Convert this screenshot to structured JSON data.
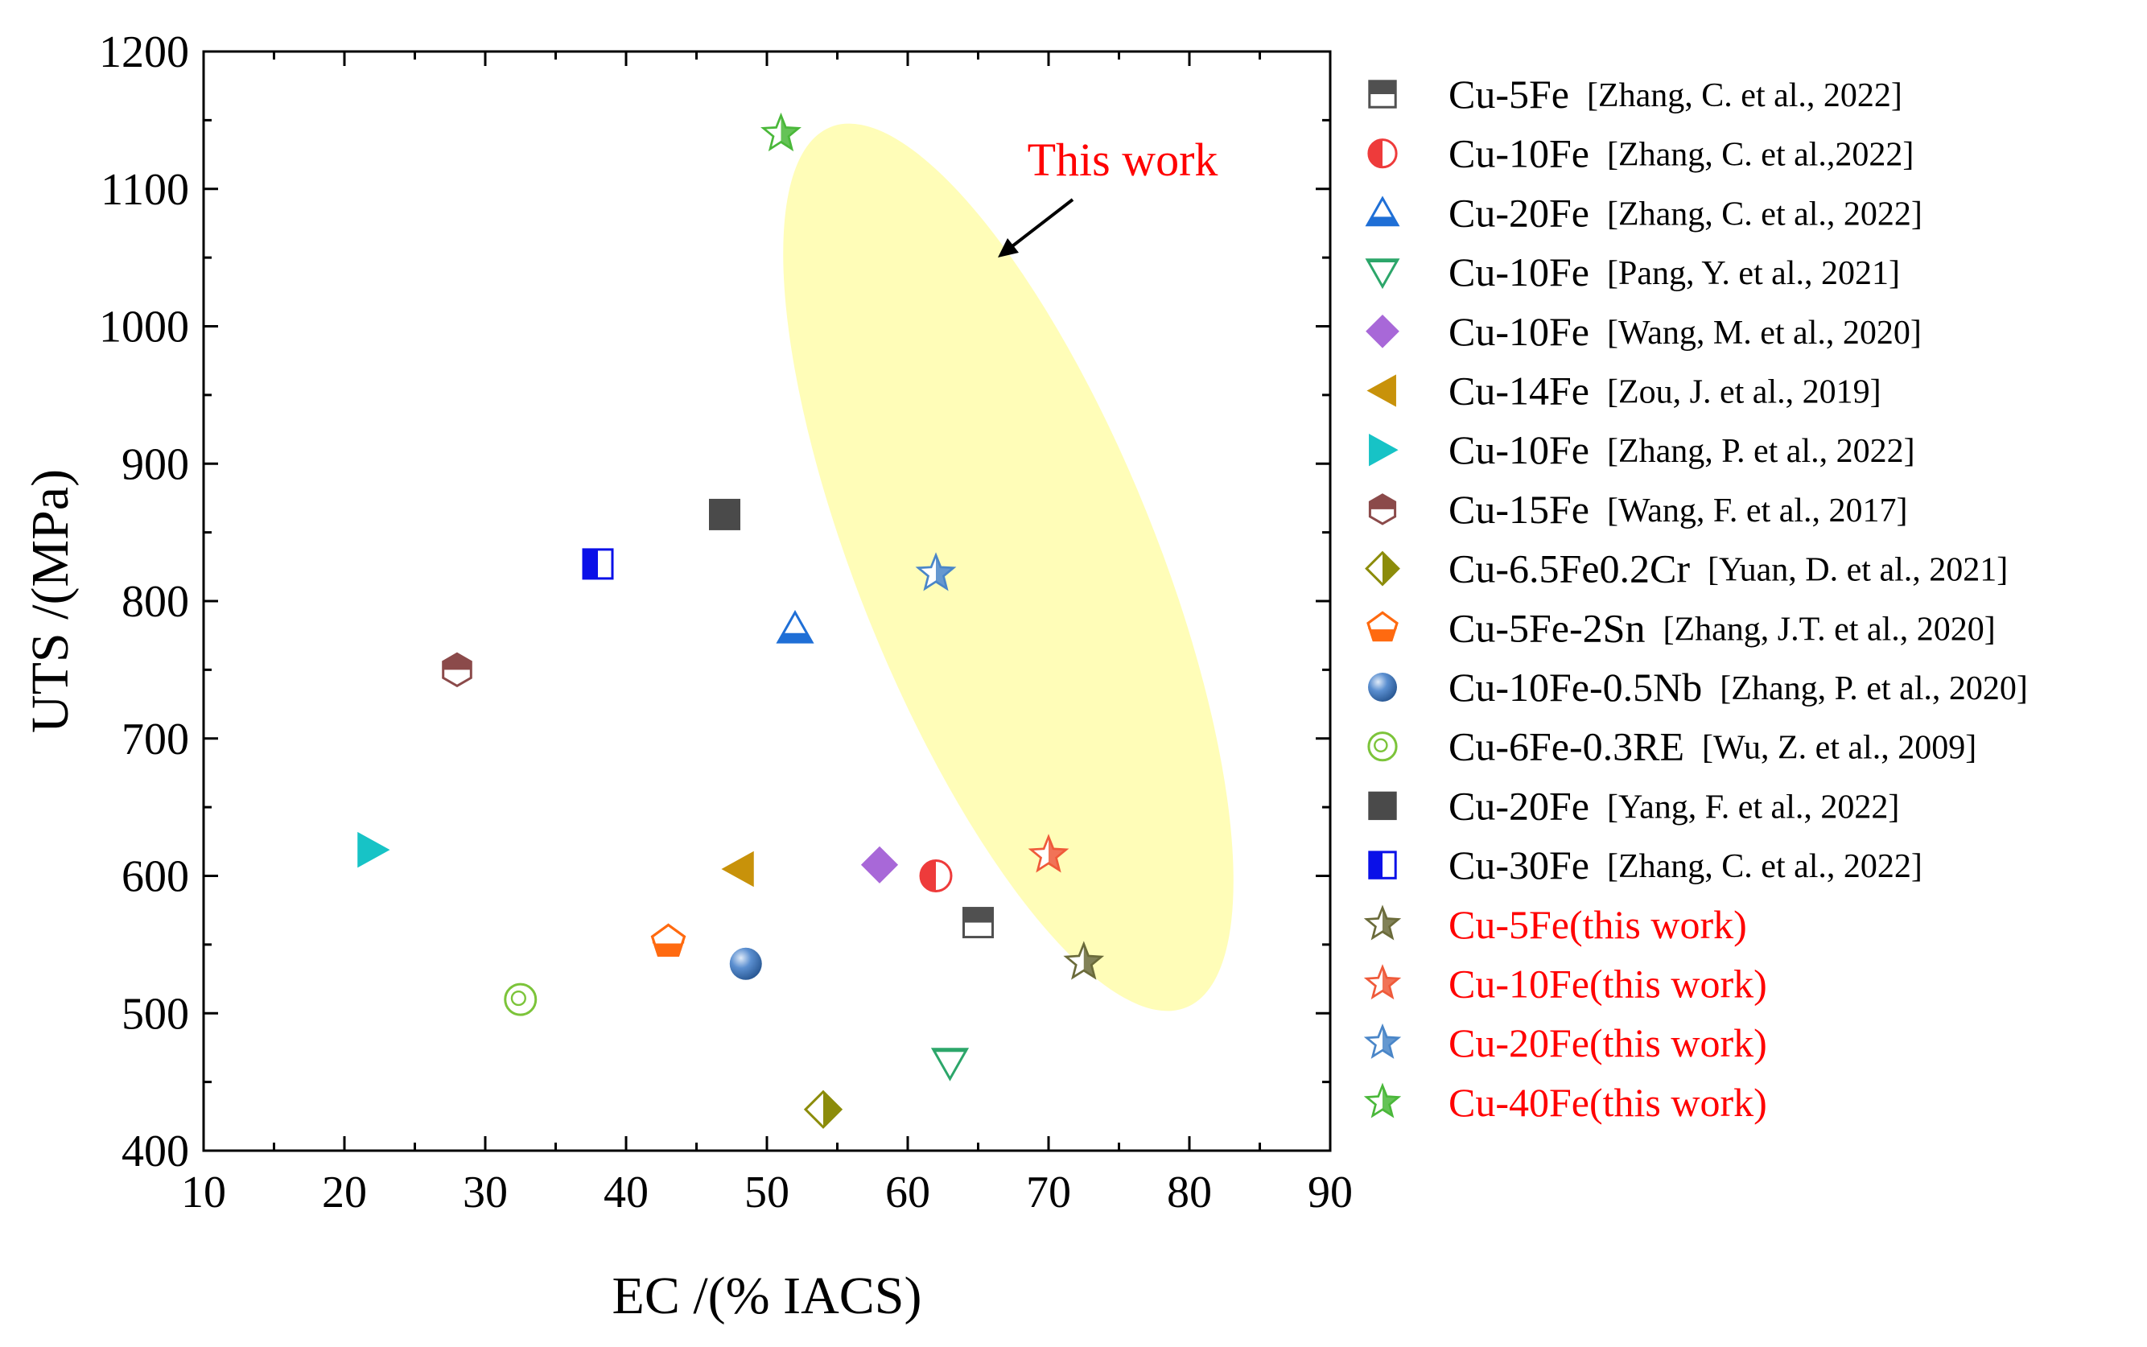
{
  "chart_data": {
    "type": "scatter",
    "xlabel": "EC /(% IACS)",
    "ylabel": "UTS /(MPa)",
    "xlim": [
      10,
      90
    ],
    "ylim": [
      400,
      1200
    ],
    "xticks": [
      10,
      20,
      30,
      40,
      50,
      60,
      70,
      80,
      90
    ],
    "yticks": [
      400,
      500,
      600,
      700,
      800,
      900,
      1000,
      1100,
      1200
    ],
    "grid": false,
    "legend_position": "right",
    "annotation": {
      "text": "This work",
      "color": "#ff0000",
      "highlight_color": "#fffdb8"
    },
    "series": [
      {
        "name": "Cu-5Fe",
        "ref": "[Zhang, C. et al., 2022]",
        "marker": "square-half-bottom",
        "color": "#505050",
        "name_color": "#000000",
        "points": [
          {
            "x": 65,
            "y": 566
          }
        ]
      },
      {
        "name": "Cu-10Fe",
        "ref": "[Zhang, C. et al.,2022]",
        "marker": "circle-half-right",
        "color": "#ee3b3b",
        "name_color": "#000000",
        "points": [
          {
            "x": 62,
            "y": 600
          }
        ]
      },
      {
        "name": "Cu-20Fe",
        "ref": "[Zhang, C. et al., 2022]",
        "marker": "triangle-up-half-bottom",
        "color": "#1f6fd6",
        "name_color": "#000000",
        "points": [
          {
            "x": 52,
            "y": 780
          }
        ]
      },
      {
        "name": "Cu-10Fe",
        "ref": "[Pang, Y. et al., 2021]",
        "marker": "triangle-down-half-top",
        "color": "#2ca66a",
        "name_color": "#000000",
        "points": [
          {
            "x": 63,
            "y": 464
          }
        ]
      },
      {
        "name": "Cu-10Fe",
        "ref": "[Wang, M. et al., 2020]",
        "marker": "diamond",
        "color": "#a868d8",
        "name_color": "#000000",
        "points": [
          {
            "x": 58,
            "y": 608
          }
        ]
      },
      {
        "name": "Cu-14Fe",
        "ref": "[Zou, J. et al., 2019]",
        "marker": "triangle-left",
        "color": "#c8920a",
        "name_color": "#000000",
        "points": [
          {
            "x": 48,
            "y": 605
          }
        ]
      },
      {
        "name": "Cu-10Fe",
        "ref": "[Zhang, P. et al., 2022]",
        "marker": "triangle-right",
        "color": "#17c3c6",
        "name_color": "#000000",
        "points": [
          {
            "x": 22,
            "y": 619
          }
        ]
      },
      {
        "name": "Cu-15Fe",
        "ref": "[Wang, F. et al., 2017]",
        "marker": "hexagon-half-top",
        "color": "#8b4a4a",
        "name_color": "#000000",
        "points": [
          {
            "x": 28,
            "y": 750
          }
        ]
      },
      {
        "name": "Cu-6.5Fe0.2Cr",
        "ref": "[Yuan, D. et al., 2021]",
        "marker": "diamond-half-right",
        "color": "#8c8c0a",
        "name_color": "#000000",
        "points": [
          {
            "x": 54,
            "y": 430
          }
        ]
      },
      {
        "name": "Cu-5Fe-2Sn",
        "ref": "[Zhang, J.T. et al., 2020]",
        "marker": "pentagon-half-bottom",
        "color": "#ff6a10",
        "name_color": "#000000",
        "points": [
          {
            "x": 43,
            "y": 552
          }
        ]
      },
      {
        "name": "Cu-10Fe-0.5Nb",
        "ref": "[Zhang, P. et al., 2020]",
        "marker": "sphere",
        "color": "#5b8fd0",
        "name_color": "#000000",
        "points": [
          {
            "x": 48.5,
            "y": 536
          }
        ]
      },
      {
        "name": "Cu-6Fe-0.3RE",
        "ref": "[Wu, Z. et al., 2009]",
        "marker": "circle-dot-open",
        "color": "#7cc43a",
        "name_color": "#000000",
        "points": [
          {
            "x": 32.5,
            "y": 510
          }
        ]
      },
      {
        "name": "Cu-20Fe",
        "ref": "[Yang, F. et al., 2022]",
        "marker": "square",
        "color": "#4a4a4a",
        "name_color": "#000000",
        "points": [
          {
            "x": 47,
            "y": 863
          }
        ]
      },
      {
        "name": "Cu-30Fe",
        "ref": "[Zhang, C. et al., 2022]",
        "marker": "square-half-left",
        "color": "#0a10e8",
        "name_color": "#000000",
        "points": [
          {
            "x": 38,
            "y": 827
          }
        ]
      },
      {
        "name": "Cu-5Fe(this work)",
        "ref": "",
        "marker": "star-half",
        "color": "#6b6b3a",
        "name_color": "#ff0000",
        "points": [
          {
            "x": 72.5,
            "y": 537
          }
        ]
      },
      {
        "name": "Cu-10Fe(this work)",
        "ref": "",
        "marker": "star-half",
        "color": "#ef5a3a",
        "name_color": "#ff0000",
        "points": [
          {
            "x": 70,
            "y": 615
          }
        ]
      },
      {
        "name": "Cu-20Fe(this work)",
        "ref": "",
        "marker": "star-half",
        "color": "#4a86c8",
        "name_color": "#ff0000",
        "points": [
          {
            "x": 62,
            "y": 820
          }
        ]
      },
      {
        "name": "Cu-40Fe(this work)",
        "ref": "",
        "marker": "star-half",
        "color": "#4ab83a",
        "name_color": "#ff0000",
        "points": [
          {
            "x": 51,
            "y": 1140
          }
        ]
      }
    ]
  }
}
